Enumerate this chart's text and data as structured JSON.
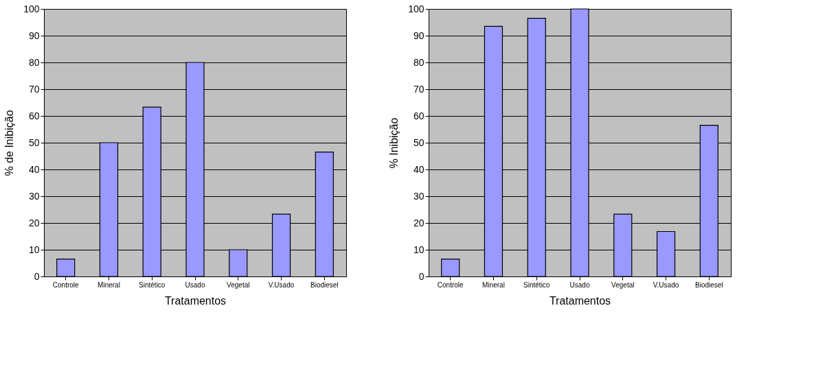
{
  "chart_data": [
    {
      "type": "bar",
      "xlabel": "Tratamentos",
      "ylabel": "% de Inibição",
      "categories": [
        "Controle",
        "Mineral",
        "Sintético",
        "Usado",
        "Vegetal",
        "V.Usado",
        "Biodiesel"
      ],
      "values": [
        6.5,
        50,
        63.3,
        80,
        10,
        23.3,
        46.5
      ],
      "color": "#9999ff",
      "ylim": [
        0,
        100
      ],
      "yticks": [
        0,
        10,
        20,
        30,
        40,
        50,
        60,
        70,
        80,
        90,
        100
      ],
      "grid": "y"
    },
    {
      "type": "bar",
      "xlabel": "Tratamentos",
      "ylabel": "% Inibição",
      "categories": [
        "Controle",
        "Mineral",
        "Sintético",
        "Usado",
        "Vegetal",
        "V.Usado",
        "Biodiesel"
      ],
      "values": [
        6.5,
        93.5,
        96.5,
        100,
        23.3,
        16.8,
        56.5
      ],
      "color": "#9999ff",
      "ylim": [
        0,
        100
      ],
      "yticks": [
        0,
        10,
        20,
        30,
        40,
        50,
        60,
        70,
        80,
        90,
        100
      ],
      "grid": "y"
    }
  ]
}
